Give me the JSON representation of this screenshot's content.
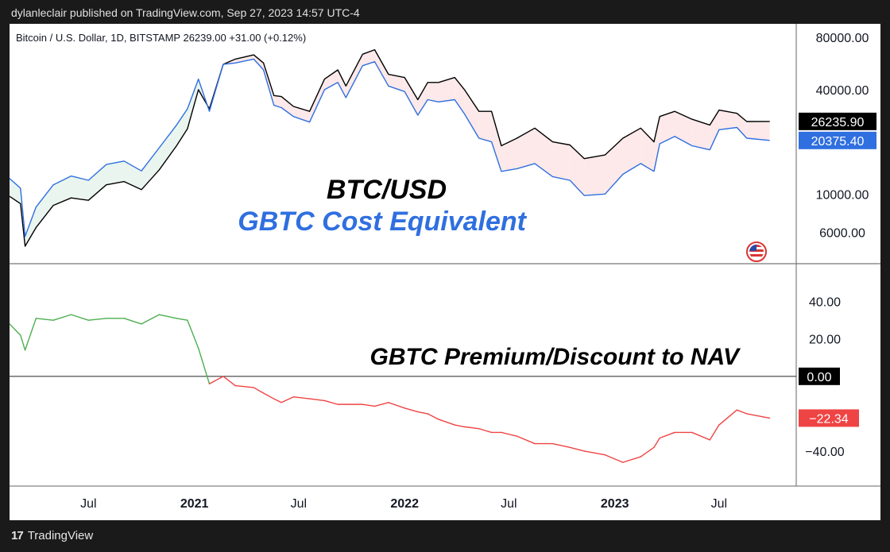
{
  "caption": "dylanleclair published on TradingView.com, Sep 27, 2023 14:57 UTC-4",
  "brand": {
    "mark": "17",
    "name": "TradingView"
  },
  "colors": {
    "btc": "#000000",
    "gbtc": "#2f6fe0",
    "premium": "#4caf50",
    "discount": "#ef4444",
    "fill_up": "#e9f5ee",
    "fill_down": "#fde9e9"
  },
  "chart_data": [
    {
      "type": "line",
      "header": "Bitcoin / U.S. Dollar, 1D, BITSTAMP  26239.00  +31.00 (+0.12%)",
      "annotations": [
        "BTC/USD",
        "GBTC Cost Equivalent"
      ],
      "y_scale": "log",
      "ylim": [
        4500,
        90000
      ],
      "y_ticks": [
        {
          "value": 80000,
          "label": "80000.00"
        },
        {
          "value": 40000,
          "label": "40000.00"
        },
        {
          "value": 10000,
          "label": "10000.00"
        },
        {
          "value": 6000,
          "label": "6000.00"
        }
      ],
      "last_values": [
        {
          "series": "BTC/USD",
          "value": 26235.9,
          "label": "26235.90"
        },
        {
          "series": "GBTC Cost Equivalent",
          "value": 20375.4,
          "label": "20375.40"
        }
      ],
      "series": [
        {
          "name": "BTC/USD",
          "x": [
            "2020-02-15",
            "2020-03-05",
            "2020-03-13",
            "2020-04-01",
            "2020-05-01",
            "2020-06-01",
            "2020-07-01",
            "2020-08-01",
            "2020-09-01",
            "2020-10-01",
            "2020-11-01",
            "2020-12-01",
            "2020-12-20",
            "2021-01-08",
            "2021-01-27",
            "2021-02-20",
            "2021-03-13",
            "2021-04-14",
            "2021-05-01",
            "2021-05-19",
            "2021-06-01",
            "2021-06-22",
            "2021-07-20",
            "2021-08-15",
            "2021-09-07",
            "2021-09-21",
            "2021-10-20",
            "2021-11-10",
            "2021-12-04",
            "2022-01-01",
            "2022-01-24",
            "2022-02-10",
            "2022-03-01",
            "2022-03-29",
            "2022-04-15",
            "2022-05-10",
            "2022-06-01",
            "2022-06-18",
            "2022-07-15",
            "2022-08-15",
            "2022-09-15",
            "2022-10-15",
            "2022-11-09",
            "2022-12-15",
            "2023-01-15",
            "2023-02-15",
            "2023-03-10",
            "2023-03-20",
            "2023-04-15",
            "2023-05-15",
            "2023-06-15",
            "2023-07-01",
            "2023-08-01",
            "2023-08-18",
            "2023-09-27"
          ],
          "values": [
            9700,
            8800,
            5000,
            6400,
            8600,
            9500,
            9200,
            11300,
            11800,
            10600,
            13800,
            19000,
            23800,
            40000,
            31000,
            56000,
            60000,
            63500,
            57000,
            37000,
            36500,
            32000,
            30000,
            46000,
            52000,
            42000,
            64000,
            68000,
            49000,
            47000,
            35000,
            44000,
            44000,
            47000,
            40000,
            30000,
            30000,
            19000,
            21000,
            24000,
            20000,
            19200,
            16000,
            16800,
            21000,
            24000,
            20000,
            28000,
            30000,
            27000,
            25000,
            30500,
            29200,
            26200,
            26236
          ]
        },
        {
          "name": "GBTC Cost Equivalent",
          "x": [
            "2020-02-15",
            "2020-03-05",
            "2020-03-13",
            "2020-04-01",
            "2020-05-01",
            "2020-06-01",
            "2020-07-01",
            "2020-08-01",
            "2020-09-01",
            "2020-10-01",
            "2020-11-01",
            "2020-12-01",
            "2020-12-20",
            "2021-01-08",
            "2021-01-27",
            "2021-02-20",
            "2021-03-13",
            "2021-04-14",
            "2021-05-01",
            "2021-05-19",
            "2021-06-01",
            "2021-06-22",
            "2021-07-20",
            "2021-08-15",
            "2021-09-07",
            "2021-09-21",
            "2021-10-20",
            "2021-11-10",
            "2021-12-04",
            "2022-01-01",
            "2022-01-24",
            "2022-02-10",
            "2022-03-01",
            "2022-03-29",
            "2022-04-15",
            "2022-05-10",
            "2022-06-01",
            "2022-06-18",
            "2022-07-15",
            "2022-08-15",
            "2022-09-15",
            "2022-10-15",
            "2022-11-09",
            "2022-12-15",
            "2023-01-15",
            "2023-02-15",
            "2023-03-10",
            "2023-03-20",
            "2023-04-15",
            "2023-05-15",
            "2023-06-15",
            "2023-07-01",
            "2023-08-01",
            "2023-08-18",
            "2023-09-27"
          ],
          "values": [
            12300,
            10800,
            5700,
            8400,
            11300,
            12700,
            12000,
            14800,
            15500,
            13600,
            18500,
            25000,
            31000,
            46000,
            30000,
            56000,
            57000,
            60000,
            52000,
            32500,
            31500,
            28000,
            26000,
            40000,
            44000,
            36000,
            55000,
            58000,
            42000,
            39000,
            28500,
            35000,
            34000,
            35000,
            29000,
            21000,
            20000,
            13500,
            14000,
            15000,
            12600,
            12000,
            9800,
            10000,
            13000,
            15000,
            13500,
            19500,
            21500,
            19000,
            18000,
            23500,
            24200,
            21000,
            20375
          ]
        }
      ]
    },
    {
      "type": "line",
      "annotations": [
        "GBTC Premium/Discount to NAV"
      ],
      "ylim": [
        -57,
        56
      ],
      "y_ticks": [
        {
          "value": 40,
          "label": "40.00"
        },
        {
          "value": 20,
          "label": "20.00"
        },
        {
          "value": 0,
          "label": "0.00"
        },
        {
          "value": -40,
          "label": "−40.00"
        }
      ],
      "last_values": [
        {
          "value": -22.34,
          "label": "−22.34"
        }
      ],
      "series": [
        {
          "name": "GBTC Premium/Discount to NAV",
          "x": [
            "2020-02-15",
            "2020-03-05",
            "2020-03-13",
            "2020-04-01",
            "2020-05-01",
            "2020-06-01",
            "2020-07-01",
            "2020-08-01",
            "2020-09-01",
            "2020-10-01",
            "2020-11-01",
            "2020-12-01",
            "2020-12-20",
            "2021-01-08",
            "2021-01-27",
            "2021-02-20",
            "2021-03-13",
            "2021-04-14",
            "2021-05-01",
            "2021-05-19",
            "2021-06-01",
            "2021-06-22",
            "2021-07-20",
            "2021-08-15",
            "2021-09-07",
            "2021-09-21",
            "2021-10-20",
            "2021-11-10",
            "2021-12-04",
            "2022-01-01",
            "2022-01-24",
            "2022-02-10",
            "2022-03-01",
            "2022-03-29",
            "2022-04-15",
            "2022-05-10",
            "2022-06-01",
            "2022-06-18",
            "2022-07-15",
            "2022-08-15",
            "2022-09-15",
            "2022-10-15",
            "2022-11-09",
            "2022-12-15",
            "2023-01-15",
            "2023-02-15",
            "2023-03-10",
            "2023-03-20",
            "2023-04-15",
            "2023-05-15",
            "2023-06-15",
            "2023-07-01",
            "2023-08-01",
            "2023-08-18",
            "2023-09-27"
          ],
          "values": [
            28,
            22,
            14,
            31,
            30,
            33,
            30,
            31,
            31,
            28,
            33,
            31,
            30,
            15,
            -4,
            0,
            -5,
            -6,
            -9,
            -12,
            -14,
            -11,
            -12,
            -13,
            -15,
            -15,
            -15,
            -16,
            -14,
            -17,
            -19,
            -20,
            -23,
            -26,
            -27,
            -28,
            -30,
            -30,
            -32,
            -36,
            -36,
            -38,
            -40,
            -42,
            -46,
            -43,
            -38,
            -33,
            -30,
            -30,
            -34,
            -26,
            -18,
            -20,
            -22.34
          ]
        }
      ]
    }
  ],
  "x_axis": {
    "ticks": [
      {
        "date": "2020-07-01",
        "label": "Jul",
        "bold": false
      },
      {
        "date": "2021-01-01",
        "label": "2021",
        "bold": true
      },
      {
        "date": "2021-07-01",
        "label": "Jul",
        "bold": false
      },
      {
        "date": "2022-01-01",
        "label": "2022",
        "bold": true
      },
      {
        "date": "2022-07-01",
        "label": "Jul",
        "bold": false
      },
      {
        "date": "2023-01-01",
        "label": "2023",
        "bold": true
      },
      {
        "date": "2023-07-01",
        "label": "Jul",
        "bold": false
      }
    ],
    "range": [
      "2020-02-15",
      "2023-11-12"
    ]
  }
}
